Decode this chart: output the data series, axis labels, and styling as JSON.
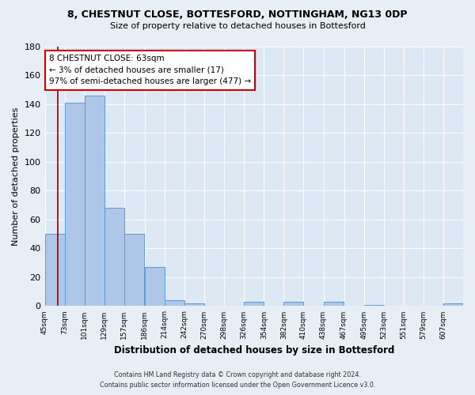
{
  "title": "8, CHESTNUT CLOSE, BOTTESFORD, NOTTINGHAM, NG13 0DP",
  "subtitle": "Size of property relative to detached houses in Bottesford",
  "xlabel": "Distribution of detached houses by size in Bottesford",
  "ylabel": "Number of detached properties",
  "bin_edges": [
    45,
    73,
    101,
    129,
    157,
    186,
    214,
    242,
    270,
    298,
    326,
    354,
    382,
    410,
    438,
    467,
    495,
    523,
    551,
    579,
    607
  ],
  "bin_labels": [
    "45sqm",
    "73sqm",
    "101sqm",
    "129sqm",
    "157sqm",
    "186sqm",
    "214sqm",
    "242sqm",
    "270sqm",
    "298sqm",
    "326sqm",
    "354sqm",
    "382sqm",
    "410sqm",
    "438sqm",
    "467sqm",
    "495sqm",
    "523sqm",
    "551sqm",
    "579sqm",
    "607sqm"
  ],
  "counts": [
    50,
    141,
    146,
    68,
    50,
    27,
    4,
    2,
    0,
    0,
    3,
    0,
    3,
    0,
    3,
    0,
    1,
    0,
    0,
    0,
    2
  ],
  "bar_color": "#aec6e8",
  "bar_edge_color": "#5b9bd5",
  "property_line_x": 63,
  "property_line_color": "#8b0000",
  "annotation_title": "8 CHESTNUT CLOSE: 63sqm",
  "annotation_line1": "← 3% of detached houses are smaller (17)",
  "annotation_line2": "97% of semi-detached houses are larger (477) →",
  "annotation_box_color": "#ffffff",
  "annotation_box_edge_color": "#cc0000",
  "background_color": "#dde8f5",
  "fig_background_color": "#e8eef5",
  "ylim": [
    0,
    180
  ],
  "yticks": [
    0,
    20,
    40,
    60,
    80,
    100,
    120,
    140,
    160,
    180
  ],
  "footer_line1": "Contains HM Land Registry data © Crown copyright and database right 2024.",
  "footer_line2": "Contains public sector information licensed under the Open Government Licence v3.0."
}
